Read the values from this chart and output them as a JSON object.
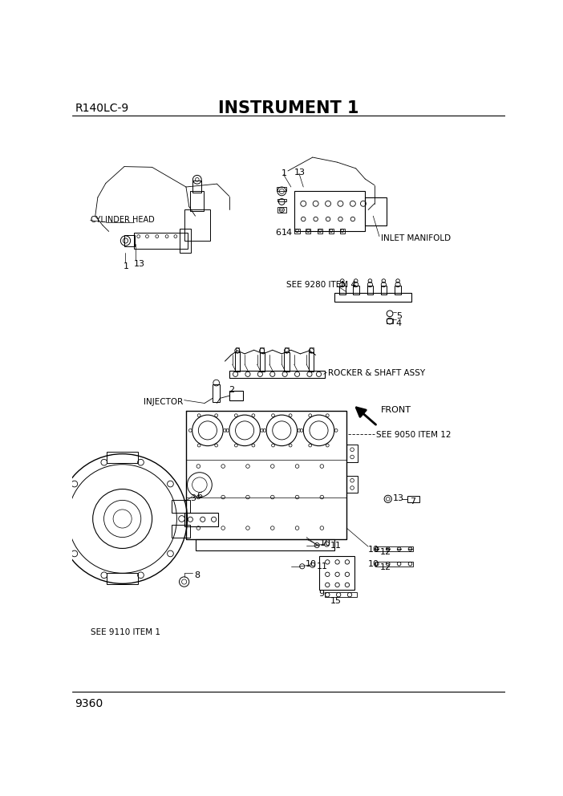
{
  "title": "INSTRUMENT 1",
  "model": "R140LC-9",
  "page": "9360",
  "bg_color": "#ffffff",
  "lc": "#000000",
  "tc": "#000000",
  "labels": {
    "cylinder_head": "CYLINDER HEAD",
    "inlet_manifold": "INLET MANIFOLD",
    "injector": "INJECTOR",
    "rocker_shaft": "ROCKER & SHAFT ASSY",
    "front": "FRONT",
    "see_9280": "SEE 9280 ITEM 4",
    "see_9050": "SEE 9050 ITEM 12",
    "see_9110": "SEE 9110 ITEM 1"
  }
}
